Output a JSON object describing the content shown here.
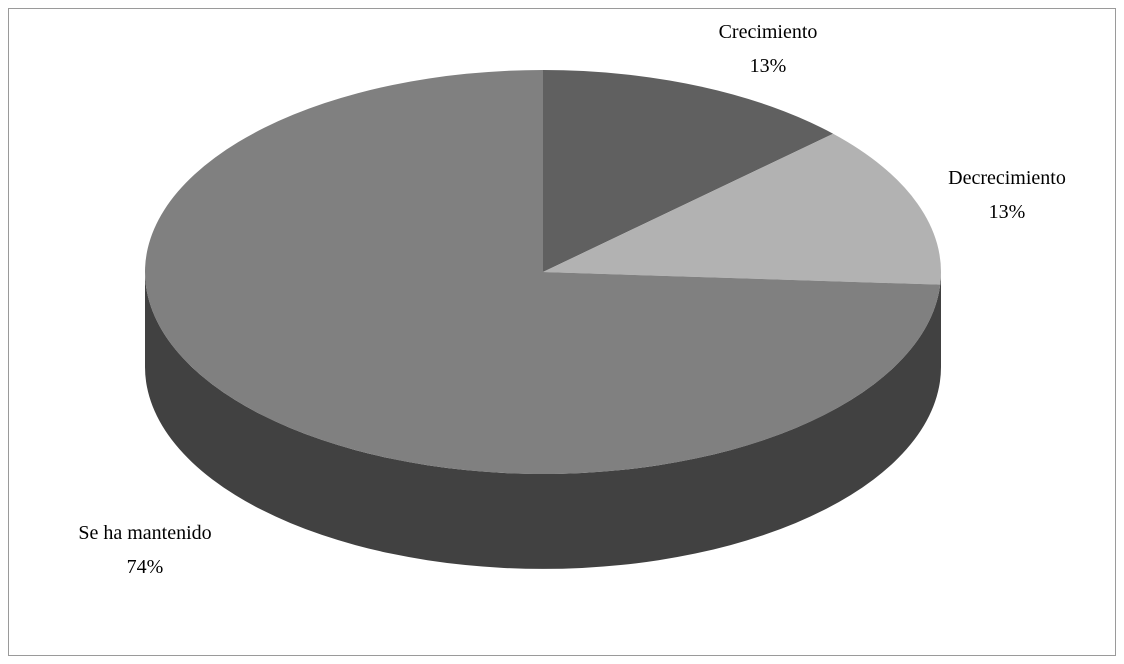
{
  "chart_data": {
    "type": "pie",
    "style": "3d",
    "title": "",
    "slices": [
      {
        "label": "Crecimiento",
        "value": 13,
        "value_label": "13%",
        "color": "#606060"
      },
      {
        "label": "Decrecimiento",
        "value": 13,
        "value_label": "13%",
        "color": "#b2b2b2"
      },
      {
        "label": "Se ha mantenido",
        "value": 74,
        "value_label": "74%",
        "color": "#808080"
      }
    ],
    "side_color": "#414141",
    "legend": "none"
  }
}
